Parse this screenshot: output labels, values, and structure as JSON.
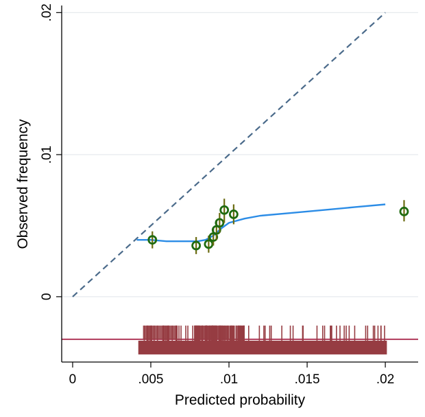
{
  "chart_data": {
    "type": "scatter",
    "xlabel": "Predicted probability",
    "ylabel": "Observed frequency",
    "xlim": [
      -0.0007,
      0.0221
    ],
    "ylim": [
      -0.0046,
      0.0205
    ],
    "x_ticks": [
      {
        "value": 0,
        "label": "0"
      },
      {
        "value": 0.005,
        "label": ".005"
      },
      {
        "value": 0.01,
        "label": ".01"
      },
      {
        "value": 0.015,
        "label": ".015"
      },
      {
        "value": 0.02,
        "label": ".02"
      }
    ],
    "y_ticks": [
      {
        "value": 0,
        "label": "0"
      },
      {
        "value": 0.01,
        "label": ".01"
      },
      {
        "value": 0.02,
        "label": ".02"
      }
    ],
    "grid": true,
    "reference_line": {
      "x": [
        0,
        0.02
      ],
      "y": [
        0,
        0.02
      ],
      "style": "dashed",
      "color": "#4a6a8a"
    },
    "smooth_line": {
      "color": "#2b8ce6",
      "points": [
        [
          0.0041,
          0.004
        ],
        [
          0.005,
          0.004
        ],
        [
          0.006,
          0.0039
        ],
        [
          0.007,
          0.0039
        ],
        [
          0.008,
          0.0039
        ],
        [
          0.0085,
          0.004
        ],
        [
          0.009,
          0.0043
        ],
        [
          0.0095,
          0.0048
        ],
        [
          0.01,
          0.0052
        ],
        [
          0.011,
          0.0055
        ],
        [
          0.012,
          0.0057
        ],
        [
          0.014,
          0.0059
        ],
        [
          0.016,
          0.0061
        ],
        [
          0.018,
          0.0063
        ],
        [
          0.02,
          0.0065
        ]
      ]
    },
    "groups": {
      "color": "#1f6b10",
      "points": [
        {
          "x": 0.0051,
          "y": 0.004,
          "ci": [
            0.0034,
            0.0046
          ]
        },
        {
          "x": 0.0079,
          "y": 0.0036,
          "ci": [
            0.003,
            0.0042
          ]
        },
        {
          "x": 0.0087,
          "y": 0.0037,
          "ci": [
            0.0031,
            0.0043
          ]
        },
        {
          "x": 0.009,
          "y": 0.0042,
          "ci": [
            0.0036,
            0.0049
          ]
        },
        {
          "x": 0.0092,
          "y": 0.0047,
          "ci": [
            0.004,
            0.0054
          ]
        },
        {
          "x": 0.0094,
          "y": 0.0052,
          "ci": [
            0.0045,
            0.0059
          ]
        },
        {
          "x": 0.0097,
          "y": 0.0061,
          "ci": [
            0.0052,
            0.0069
          ]
        },
        {
          "x": 0.0103,
          "y": 0.0058,
          "ci": [
            0.0051,
            0.0065
          ]
        },
        {
          "x": 0.0212,
          "y": 0.006,
          "ci": [
            0.0053,
            0.0068
          ]
        }
      ]
    },
    "rug": {
      "color": "#963c42",
      "baseline_y": -0.003,
      "baseline_color": "#b03a5a",
      "x_range": [
        0.0042,
        0.0201
      ]
    }
  }
}
